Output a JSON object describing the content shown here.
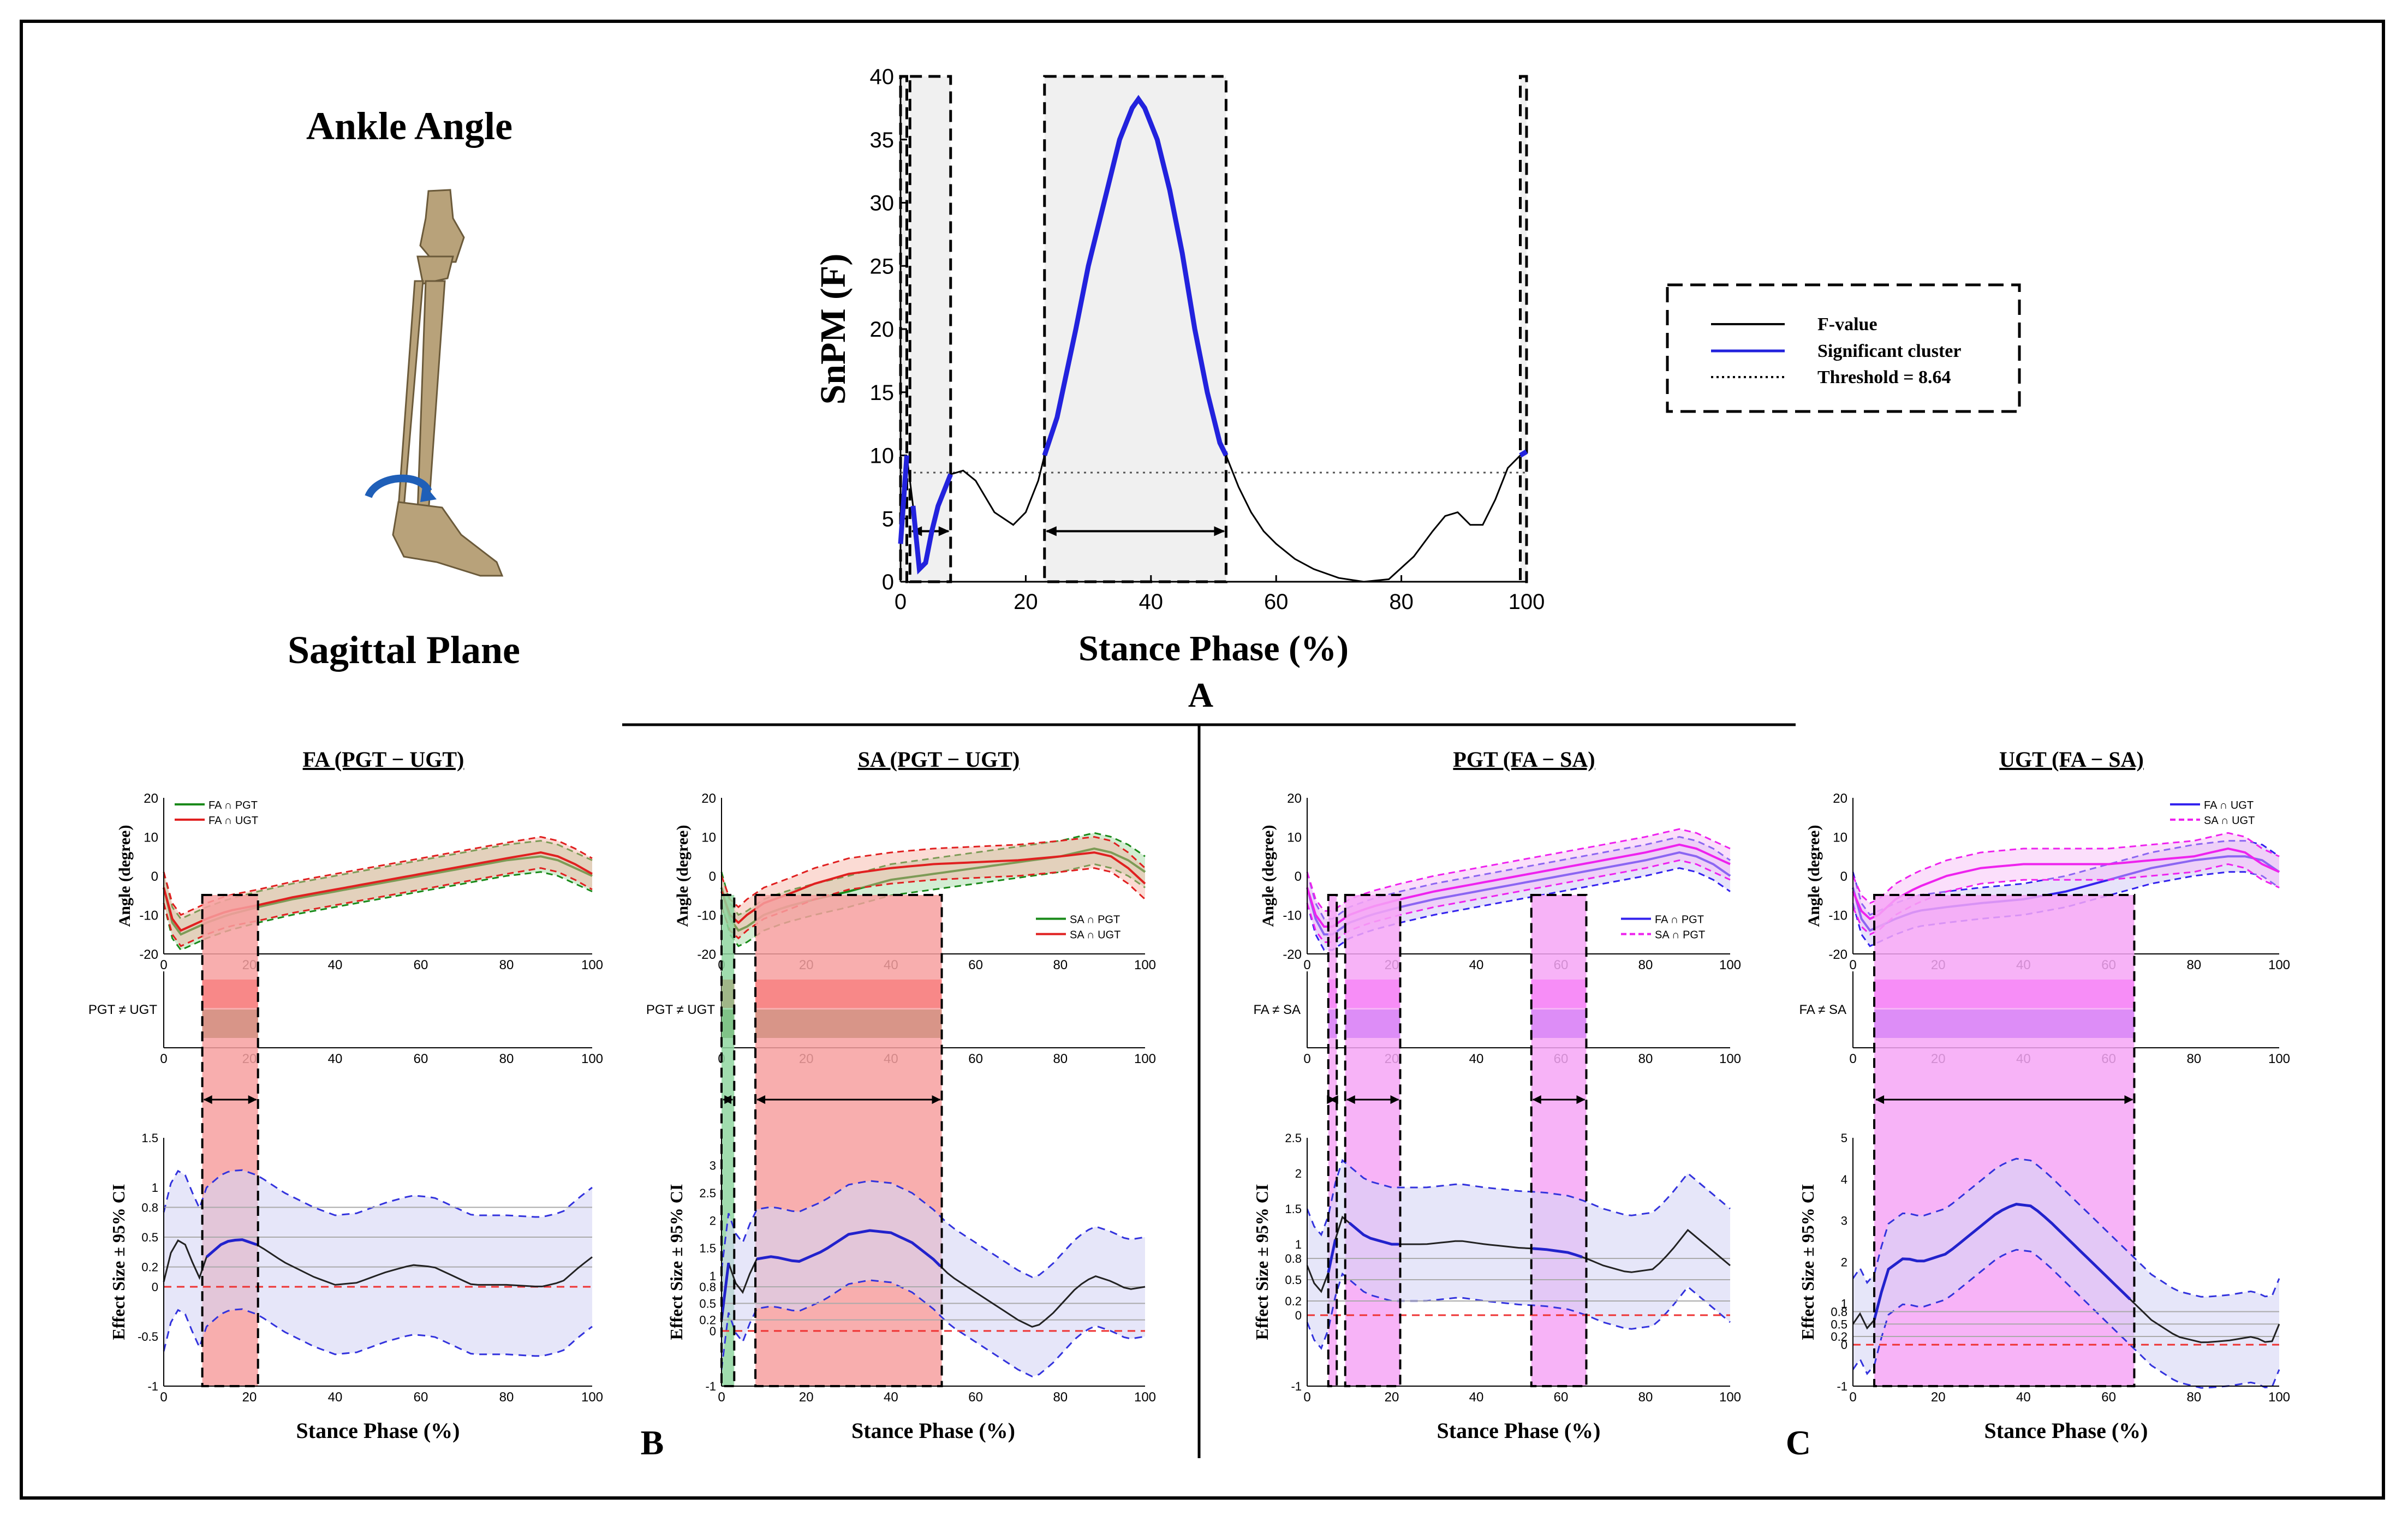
{
  "figure": {
    "ankle_title": "Ankle Angle",
    "plane_title": "Sagittal Plane",
    "letter_a": "A",
    "letter_b": "B",
    "letter_c": "C"
  },
  "legend": {
    "fvalue": "F-value",
    "sig": "Significant cluster",
    "thresh": "Threshold = 8.64"
  },
  "colors": {
    "significant": "#2222dd",
    "green": "#1a8a1a",
    "red": "#e02020",
    "magenta": "#ee22ee",
    "blue": "#3322ee",
    "shade_red": "#f7a0a0",
    "shade_pink": "#f6a6f6",
    "shade_gray": "#f0f0f0",
    "ci_fill": "#d6d6f5"
  },
  "chart_data": [
    {
      "id": "snpm",
      "type": "line",
      "title": "",
      "xlabel": "Stance Phase (%)",
      "ylabel": "SnPM (F)",
      "xlim": [
        0,
        100
      ],
      "ylim": [
        0,
        40
      ],
      "xticks": [
        0,
        20,
        40,
        60,
        80,
        100
      ],
      "yticks": [
        0,
        5,
        10,
        15,
        20,
        25,
        30,
        35,
        40
      ],
      "threshold": 8.64,
      "clusters": [
        [
          0,
          1
        ],
        [
          1.5,
          8
        ],
        [
          23,
          52
        ],
        [
          99,
          100
        ]
      ],
      "x": [
        0,
        1,
        2,
        3,
        4,
        5,
        6,
        8,
        10,
        12,
        15,
        18,
        20,
        22,
        23,
        25,
        28,
        30,
        33,
        35,
        37,
        38,
        39,
        41,
        43,
        45,
        47,
        49,
        51,
        52,
        54,
        56,
        58,
        60,
        63,
        66,
        70,
        74,
        78,
        82,
        85,
        87,
        89,
        91,
        93,
        95,
        97,
        99,
        100
      ],
      "y": [
        3,
        10,
        6,
        1,
        1.5,
        4,
        6,
        8.5,
        8.8,
        8,
        5.5,
        4.5,
        5.5,
        8,
        10,
        13,
        20,
        25,
        31,
        35,
        37.5,
        38.2,
        37.5,
        35,
        31,
        26,
        20,
        15,
        11,
        10,
        7.5,
        5.5,
        4,
        3,
        1.8,
        1,
        0.3,
        0,
        0.2,
        2,
        4,
        5.2,
        5.5,
        4.5,
        4.5,
        6.5,
        9,
        10,
        10.3
      ]
    },
    {
      "id": "panel1",
      "type": "line",
      "title": "FA (PGT − UGT)",
      "angle_ylabel": "Angle (degree)",
      "angle_ylim": [
        -20,
        20
      ],
      "angle_yticks": [
        -20,
        -10,
        0,
        10,
        20
      ],
      "xticks": [
        0,
        20,
        40,
        60,
        80,
        100
      ],
      "legend": [
        "FA ∩ PGT",
        "FA ∩ UGT"
      ],
      "legend_pos": "top-left",
      "mean1": [
        [
          0,
          -3
        ],
        [
          2,
          -12
        ],
        [
          4,
          -15
        ],
        [
          6,
          -14
        ],
        [
          10,
          -12
        ],
        [
          15,
          -10
        ],
        [
          22,
          -8
        ],
        [
          30,
          -6
        ],
        [
          40,
          -4
        ],
        [
          50,
          -2
        ],
        [
          60,
          0
        ],
        [
          70,
          2
        ],
        [
          80,
          4
        ],
        [
          88,
          5
        ],
        [
          92,
          4
        ],
        [
          96,
          2
        ],
        [
          100,
          0
        ]
      ],
      "mean2": [
        [
          0,
          -3
        ],
        [
          2,
          -11
        ],
        [
          4,
          -14
        ],
        [
          6,
          -13
        ],
        [
          10,
          -11
        ],
        [
          15,
          -9
        ],
        [
          22,
          -7.5
        ],
        [
          30,
          -5.5
        ],
        [
          40,
          -3.5
        ],
        [
          50,
          -1.5
        ],
        [
          60,
          0.5
        ],
        [
          70,
          2.5
        ],
        [
          80,
          4.5
        ],
        [
          88,
          6
        ],
        [
          92,
          5
        ],
        [
          96,
          3
        ],
        [
          100,
          0.5
        ]
      ],
      "ci_half": 4,
      "spm_label": "PGT ≠ UGT",
      "bands": [
        [
          9,
          22
        ]
      ],
      "band_colors": [
        "#ff0000",
        "#2a5a00"
      ],
      "es_ylabel": "Effect Size ± 95% CI",
      "es_ylim": [
        -1,
        1.5
      ],
      "es_yticks": [
        -1,
        -0.5,
        0,
        0.2,
        0.5,
        0.8,
        1,
        1.5
      ],
      "es_ticklabels": [
        "-1",
        "-0.5",
        "0",
        "0.2",
        "0.5",
        "0.8",
        "1",
        "1.5"
      ],
      "es_mean": [
        [
          0,
          0.05
        ],
        [
          2,
          0.4
        ],
        [
          4,
          0.5
        ],
        [
          6,
          0.35
        ],
        [
          8,
          0.05
        ],
        [
          10,
          0.3
        ],
        [
          14,
          0.45
        ],
        [
          18,
          0.48
        ],
        [
          22,
          0.42
        ],
        [
          28,
          0.25
        ],
        [
          35,
          0.1
        ],
        [
          40,
          0.02
        ],
        [
          45,
          0.04
        ],
        [
          52,
          0.15
        ],
        [
          58,
          0.22
        ],
        [
          63,
          0.2
        ],
        [
          68,
          0.1
        ],
        [
          72,
          0.02
        ],
        [
          80,
          0.02
        ],
        [
          88,
          0.0
        ],
        [
          93,
          0.05
        ],
        [
          97,
          0.2
        ],
        [
          100,
          0.3
        ]
      ],
      "es_ci": 0.7,
      "xlabel": "Stance Phase (%)",
      "shade": "red"
    },
    {
      "id": "panel2",
      "type": "line",
      "title": "SA (PGT − UGT)",
      "angle_ylabel": "Angle (degree)",
      "angle_ylim": [
        -20,
        20
      ],
      "angle_yticks": [
        -20,
        -10,
        0,
        10,
        20
      ],
      "xticks": [
        0,
        20,
        40,
        60,
        80,
        100
      ],
      "legend": [
        "SA ∩ PGT",
        "SA ∩ UGT"
      ],
      "legend_pos": "middle-right",
      "mean1": [
        [
          0,
          -3
        ],
        [
          2,
          -11
        ],
        [
          4,
          -14
        ],
        [
          6,
          -13
        ],
        [
          10,
          -10
        ],
        [
          15,
          -8
        ],
        [
          22,
          -6
        ],
        [
          30,
          -4
        ],
        [
          40,
          -1
        ],
        [
          50,
          0.5
        ],
        [
          60,
          2
        ],
        [
          70,
          3.5
        ],
        [
          80,
          5
        ],
        [
          88,
          7
        ],
        [
          92,
          6
        ],
        [
          96,
          4
        ],
        [
          100,
          1
        ]
      ],
      "mean2": [
        [
          0,
          -4
        ],
        [
          2,
          -10
        ],
        [
          4,
          -12
        ],
        [
          6,
          -10
        ],
        [
          10,
          -7
        ],
        [
          15,
          -5
        ],
        [
          22,
          -2
        ],
        [
          30,
          0.5
        ],
        [
          40,
          2
        ],
        [
          50,
          3
        ],
        [
          60,
          3.5
        ],
        [
          70,
          4
        ],
        [
          80,
          5
        ],
        [
          88,
          6
        ],
        [
          92,
          5
        ],
        [
          96,
          2
        ],
        [
          100,
          -2
        ]
      ],
      "ci_half": 4,
      "spm_label": "PGT ≠ UGT",
      "bands": [
        [
          0,
          3
        ],
        [
          8,
          52
        ]
      ],
      "band_colors": [
        "#ff0000",
        "#2a5a00"
      ],
      "es_ylabel": "Effect Size ± 95% CI",
      "es_ylim": [
        -1,
        3.5
      ],
      "es_yticks": [
        -1,
        0,
        0.2,
        0.5,
        0.8,
        1,
        1.5,
        2,
        2.5,
        3
      ],
      "es_ticklabels": [
        "-1",
        "0",
        "0.2",
        "0.5",
        "0.8",
        "1",
        "1.5",
        "2",
        "2.5",
        "3"
      ],
      "es_mean": [
        [
          0,
          0.2
        ],
        [
          1,
          1.1
        ],
        [
          2,
          1.3
        ],
        [
          3,
          0.9
        ],
        [
          5,
          0.7
        ],
        [
          8,
          1.3
        ],
        [
          12,
          1.35
        ],
        [
          18,
          1.25
        ],
        [
          24,
          1.45
        ],
        [
          30,
          1.75
        ],
        [
          35,
          1.82
        ],
        [
          40,
          1.78
        ],
        [
          45,
          1.6
        ],
        [
          50,
          1.3
        ],
        [
          54,
          1.0
        ],
        [
          60,
          0.7
        ],
        [
          66,
          0.4
        ],
        [
          70,
          0.2
        ],
        [
          74,
          0.05
        ],
        [
          78,
          0.3
        ],
        [
          84,
          0.8
        ],
        [
          88,
          1.0
        ],
        [
          92,
          0.9
        ],
        [
          96,
          0.75
        ],
        [
          100,
          0.8
        ]
      ],
      "es_ci": 0.9,
      "xlabel": "Stance Phase (%)",
      "shade": "red_green"
    },
    {
      "id": "panel3",
      "type": "line",
      "title": "PGT (FA − SA)",
      "angle_ylabel": "Angle (degree)",
      "angle_ylim": [
        -20,
        20
      ],
      "angle_yticks": [
        -20,
        -10,
        0,
        10,
        20
      ],
      "xticks": [
        0,
        20,
        40,
        60,
        80,
        100
      ],
      "legend": [
        "FA ∩ PGT",
        "SA ∩ PGT"
      ],
      "legend_pos": "middle-right",
      "mean1": [
        [
          0,
          -3
        ],
        [
          2,
          -11
        ],
        [
          4,
          -15
        ],
        [
          6,
          -15
        ],
        [
          10,
          -12
        ],
        [
          15,
          -10
        ],
        [
          22,
          -8
        ],
        [
          30,
          -6
        ],
        [
          40,
          -4
        ],
        [
          50,
          -2
        ],
        [
          60,
          0
        ],
        [
          70,
          2
        ],
        [
          80,
          4
        ],
        [
          88,
          6
        ],
        [
          92,
          5
        ],
        [
          96,
          3
        ],
        [
          100,
          0
        ]
      ],
      "mean2": [
        [
          0,
          -3
        ],
        [
          2,
          -10
        ],
        [
          4,
          -13
        ],
        [
          6,
          -13
        ],
        [
          10,
          -10
        ],
        [
          15,
          -8
        ],
        [
          22,
          -6
        ],
        [
          30,
          -4
        ],
        [
          40,
          -2
        ],
        [
          50,
          0
        ],
        [
          60,
          2
        ],
        [
          70,
          4
        ],
        [
          80,
          6
        ],
        [
          88,
          8
        ],
        [
          92,
          7
        ],
        [
          96,
          5
        ],
        [
          100,
          3
        ]
      ],
      "ci_half": 4,
      "spm_label": "FA ≠ SA",
      "bands": [
        [
          5,
          7
        ],
        [
          9,
          22
        ],
        [
          53,
          66
        ]
      ],
      "band_colors": [
        "#ff00ff",
        "#5500ff"
      ],
      "es_ylabel": "Effect Size ± 95% CI",
      "es_ylim": [
        -1,
        2.5
      ],
      "es_yticks": [
        -1,
        0,
        0.2,
        0.5,
        0.8,
        1,
        1.5,
        2,
        2.5
      ],
      "es_ticklabels": [
        "-1",
        "0",
        "0.2",
        "0.5",
        "0.8",
        "1",
        "1.5",
        "2",
        "2.5"
      ],
      "es_mean": [
        [
          0,
          0.7
        ],
        [
          2,
          0.4
        ],
        [
          4,
          0.3
        ],
        [
          6,
          0.9
        ],
        [
          8,
          1.4
        ],
        [
          10,
          1.3
        ],
        [
          14,
          1.1
        ],
        [
          20,
          1.0
        ],
        [
          28,
          1.0
        ],
        [
          36,
          1.05
        ],
        [
          42,
          1.0
        ],
        [
          50,
          0.95
        ],
        [
          56,
          0.93
        ],
        [
          62,
          0.88
        ],
        [
          66,
          0.8
        ],
        [
          70,
          0.7
        ],
        [
          76,
          0.6
        ],
        [
          82,
          0.65
        ],
        [
          86,
          0.9
        ],
        [
          90,
          1.2
        ],
        [
          94,
          1.0
        ],
        [
          100,
          0.7
        ]
      ],
      "es_ci": 0.8,
      "xlabel": "Stance Phase (%)",
      "shade": "pink"
    },
    {
      "id": "panel4",
      "type": "line",
      "title": "UGT (FA − SA)",
      "angle_ylabel": "Angle (degree)",
      "angle_ylim": [
        -20,
        20
      ],
      "angle_yticks": [
        -20,
        -10,
        0,
        10,
        20
      ],
      "xticks": [
        0,
        20,
        40,
        60,
        80,
        100
      ],
      "legend": [
        "FA ∩ UGT",
        "SA ∩ UGT"
      ],
      "legend_pos": "top-right",
      "mean1": [
        [
          0,
          -3
        ],
        [
          2,
          -11
        ],
        [
          4,
          -14
        ],
        [
          6,
          -13
        ],
        [
          10,
          -11
        ],
        [
          15,
          -9
        ],
        [
          22,
          -8
        ],
        [
          30,
          -7
        ],
        [
          40,
          -6
        ],
        [
          50,
          -4
        ],
        [
          60,
          -1
        ],
        [
          70,
          2
        ],
        [
          80,
          4
        ],
        [
          88,
          5
        ],
        [
          92,
          5
        ],
        [
          96,
          4
        ],
        [
          100,
          1
        ]
      ],
      "mean2": [
        [
          0,
          -4
        ],
        [
          2,
          -9
        ],
        [
          4,
          -11
        ],
        [
          6,
          -10
        ],
        [
          10,
          -6
        ],
        [
          15,
          -3
        ],
        [
          22,
          0
        ],
        [
          30,
          2
        ],
        [
          40,
          3
        ],
        [
          50,
          3
        ],
        [
          60,
          3
        ],
        [
          70,
          4
        ],
        [
          80,
          5
        ],
        [
          88,
          7
        ],
        [
          92,
          6
        ],
        [
          96,
          3
        ],
        [
          100,
          1
        ]
      ],
      "ci_half": 4,
      "spm_label": "FA ≠ SA",
      "bands": [
        [
          5,
          66
        ]
      ],
      "band_colors": [
        "#ff00ff",
        "#5500ff"
      ],
      "es_ylabel": "Effect Size ± 95% CI",
      "es_ylim": [
        -1,
        5
      ],
      "es_yticks": [
        -1,
        0,
        0.2,
        0.5,
        0.8,
        1,
        2,
        3,
        4,
        5
      ],
      "es_ticklabels": [
        "-1",
        "0",
        "0.2",
        "0.5",
        "0.8",
        "1",
        "2",
        "3",
        "4",
        "5"
      ],
      "es_mean": [
        [
          0,
          0.5
        ],
        [
          2,
          0.8
        ],
        [
          4,
          0.2
        ],
        [
          6,
          1.0
        ],
        [
          8,
          1.8
        ],
        [
          12,
          2.1
        ],
        [
          16,
          2.0
        ],
        [
          22,
          2.2
        ],
        [
          28,
          2.7
        ],
        [
          34,
          3.2
        ],
        [
          38,
          3.4
        ],
        [
          42,
          3.35
        ],
        [
          46,
          3.0
        ],
        [
          52,
          2.4
        ],
        [
          58,
          1.8
        ],
        [
          64,
          1.2
        ],
        [
          70,
          0.6
        ],
        [
          76,
          0.2
        ],
        [
          82,
          0.05
        ],
        [
          88,
          0.1
        ],
        [
          94,
          0.2
        ],
        [
          98,
          0.0
        ],
        [
          100,
          0.5
        ]
      ],
      "es_ci": 1.1,
      "xlabel": "Stance Phase (%)",
      "shade": "pink"
    }
  ]
}
